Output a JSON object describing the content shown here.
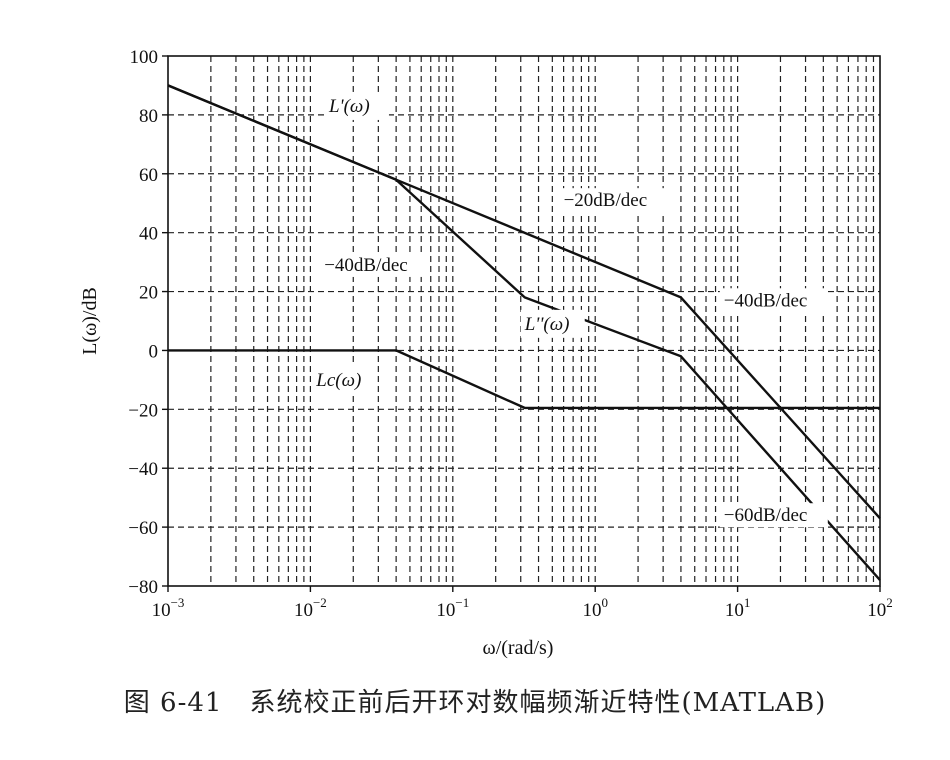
{
  "caption": "图 6-41　系统校正前后开环对数幅频渐近特性(MATLAB)",
  "chart_data": {
    "type": "line",
    "x_scale": "log",
    "xlim": [
      0.001,
      100
    ],
    "ylim": [
      -80,
      100
    ],
    "grid": "dashed",
    "xlabel": "ω/(rad/s)",
    "ylabel": "L(ω)/dB",
    "x_ticks": [
      {
        "base": "10",
        "exp": "−3",
        "value": 0.001
      },
      {
        "base": "10",
        "exp": "−2",
        "value": 0.01
      },
      {
        "base": "10",
        "exp": "−1",
        "value": 0.1
      },
      {
        "base": "10",
        "exp": "0",
        "value": 1
      },
      {
        "base": "10",
        "exp": "1",
        "value": 10
      },
      {
        "base": "10",
        "exp": "2",
        "value": 100
      }
    ],
    "y_ticks": [
      "100",
      "80",
      "60",
      "40",
      "20",
      "0",
      "−20",
      "−40",
      "−60",
      "−80"
    ],
    "y_tick_values": [
      100,
      80,
      60,
      40,
      20,
      0,
      -20,
      -40,
      -60,
      -80
    ],
    "series": [
      {
        "name": "L'(ω)",
        "x": [
          0.001,
          0.04,
          4.0,
          100
        ],
        "y": [
          90,
          58,
          18,
          -57
        ]
      },
      {
        "name": "L''(ω)",
        "x": [
          0.001,
          0.04,
          0.32,
          4.0,
          100
        ],
        "y": [
          90,
          58,
          18,
          -2,
          -78
        ]
      },
      {
        "name": "Lc(ω)",
        "x": [
          0.001,
          0.04,
          0.32,
          100
        ],
        "y": [
          0,
          0,
          -19.5,
          -19.5
        ]
      }
    ],
    "annotations": [
      {
        "text": "−20dB/dec",
        "x": 0.6,
        "y": 49
      },
      {
        "text": "−40dB/dec",
        "x": 0.0125,
        "y": 27
      },
      {
        "text": "−40dB/dec",
        "x": 8.0,
        "y": 15
      },
      {
        "text": "−60dB/dec",
        "x": 8.0,
        "y": -58
      }
    ]
  }
}
